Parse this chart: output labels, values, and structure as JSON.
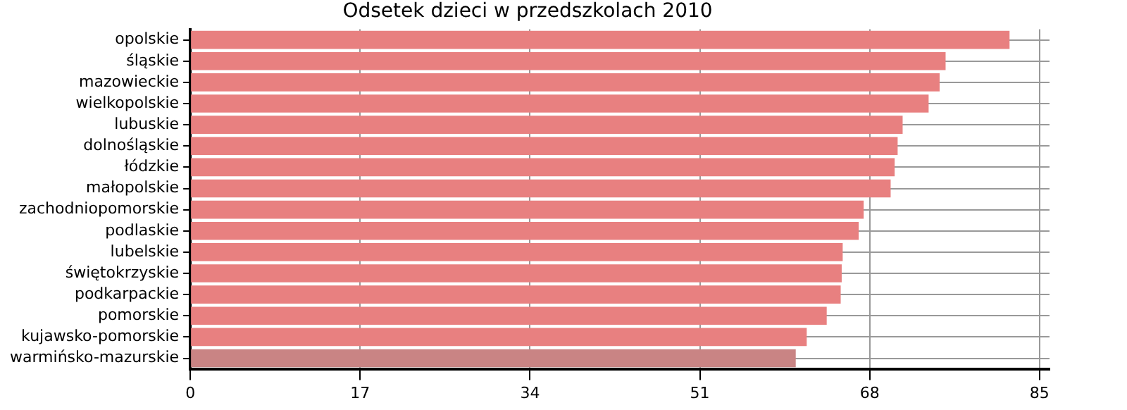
{
  "chart_data": {
    "type": "bar",
    "orientation": "horizontal",
    "title": "Odsetek dzieci w przedszkolach 2010",
    "categories": [
      "opolskie",
      "śląskie",
      "mazowieckie",
      "wielkopolskie",
      "lubuskie",
      "dolnośląskie",
      "łódzkie",
      "małopolskie",
      "zachodniopomorskie",
      "podlaskie",
      "lubelskie",
      "świętokrzyskie",
      "podkarpackie",
      "pomorskie",
      "kujawsko-pomorskie",
      "warmińsko-mazurskie"
    ],
    "values": [
      82.0,
      75.6,
      75.0,
      73.9,
      71.3,
      70.8,
      70.5,
      70.1,
      67.4,
      66.9,
      65.3,
      65.2,
      65.1,
      63.7,
      61.7,
      60.6
    ],
    "colors": [
      "#e88080",
      "#e88080",
      "#e88080",
      "#e88080",
      "#e88080",
      "#e88080",
      "#e88080",
      "#e88080",
      "#e88080",
      "#e88080",
      "#e88080",
      "#e88080",
      "#e88080",
      "#e88080",
      "#e88080",
      "#c98484"
    ],
    "xlim": [
      0,
      86
    ],
    "xticks": [
      0,
      17,
      34,
      51,
      68,
      85
    ],
    "grid": true,
    "legend": false
  }
}
